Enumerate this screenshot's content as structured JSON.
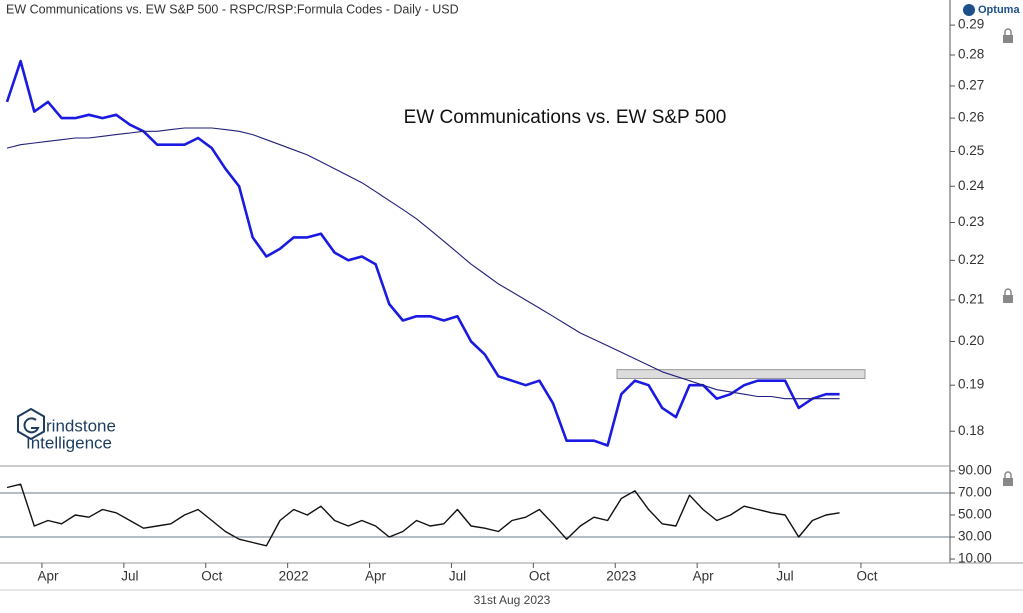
{
  "chart_data": [
    {
      "type": "line",
      "title": "EW Communications vs. EW S&P 500 - RSPC/RSP:Formula Codes - Daily - USD",
      "annotation": "EW Communications vs. EW S&P 500",
      "log_scale": true,
      "ylim": [
        0.173,
        0.2945
      ],
      "yticks": [
        0.18,
        0.19,
        {
          "value": 0.2,
          "label": "0.20"
        },
        0.21,
        0.22,
        0.23,
        0.24,
        0.25,
        0.26,
        0.27,
        0.28,
        0.29
      ],
      "band": [
        0.1915,
        0.1935
      ],
      "series": [
        {
          "color": "#1a1ae0",
          "width": 2.6,
          "values": [
            0.265,
            0.278,
            0.262,
            0.265,
            0.26,
            0.26,
            0.261,
            0.26,
            0.261,
            0.258,
            0.256,
            0.252,
            0.252,
            0.252,
            0.254,
            0.251,
            0.245,
            0.24,
            0.226,
            0.221,
            0.223,
            0.226,
            0.226,
            0.227,
            0.222,
            0.22,
            0.221,
            0.219,
            0.209,
            0.205,
            0.206,
            0.206,
            0.205,
            0.206,
            0.2,
            0.197,
            0.192,
            0.191,
            0.19,
            0.191,
            0.186,
            0.178,
            0.178,
            0.178,
            0.177,
            0.188,
            0.191,
            0.19,
            0.185,
            0.183,
            0.19,
            0.19,
            0.187,
            0.188,
            0.19,
            0.191,
            0.191,
            0.191,
            0.185,
            0.187,
            0.188,
            0.188,
            null,
            null,
            null,
            null,
            null,
            null,
            null
          ]
        },
        {
          "color": "#20207a",
          "width": 1.1,
          "values": [
            0.251,
            0.252,
            0.2525,
            0.253,
            0.2535,
            0.254,
            0.254,
            0.2545,
            0.255,
            0.2555,
            0.256,
            0.256,
            0.2565,
            0.257,
            0.257,
            0.257,
            0.2565,
            0.256,
            0.255,
            0.2535,
            0.252,
            0.2505,
            0.249,
            0.247,
            0.245,
            0.243,
            0.241,
            0.2385,
            0.236,
            0.2335,
            0.231,
            0.228,
            0.225,
            0.222,
            0.219,
            0.2165,
            0.214,
            0.212,
            0.21,
            0.208,
            0.206,
            0.204,
            0.202,
            0.2005,
            0.199,
            0.1975,
            0.196,
            0.1945,
            0.193,
            0.192,
            0.191,
            0.19,
            0.189,
            0.1885,
            0.188,
            0.1875,
            0.1875,
            0.187,
            0.187,
            0.187,
            0.187,
            0.187,
            null,
            null,
            null,
            null,
            null,
            null,
            null
          ]
        }
      ]
    },
    {
      "type": "line",
      "ylim": [
        6.4,
        93.6
      ],
      "yticks": [
        {
          "value": 10,
          "label": "10.00"
        },
        {
          "value": 30,
          "label": "30.00"
        },
        {
          "value": 50,
          "label": "50.00"
        },
        {
          "value": 70,
          "label": "70.00"
        },
        {
          "value": 90,
          "label": "90.00"
        }
      ],
      "reference_lines": [
        70,
        30
      ],
      "categories": [
        null,
        null,
        null,
        "Apr",
        null,
        null,
        null,
        null,
        null,
        "Jul",
        null,
        null,
        null,
        null,
        null,
        "Oct",
        null,
        null,
        null,
        null,
        null,
        "2022",
        null,
        null,
        null,
        null,
        null,
        "Apr",
        null,
        null,
        null,
        null,
        null,
        "Jul",
        null,
        null,
        null,
        null,
        null,
        "Oct",
        null,
        null,
        null,
        null,
        null,
        "2023",
        null,
        null,
        null,
        null,
        null,
        "Apr",
        null,
        null,
        null,
        null,
        null,
        "Jul",
        null,
        null,
        null,
        null,
        null,
        "Oct",
        null,
        null,
        null,
        null,
        null
      ],
      "date_label": "31st Aug 2023",
      "series": [
        {
          "color": "#111111",
          "width": 1.4,
          "values": [
            75,
            78,
            40,
            45,
            42,
            50,
            48,
            55,
            52,
            45,
            38,
            40,
            42,
            50,
            55,
            45,
            35,
            28,
            25,
            22,
            45,
            55,
            50,
            58,
            45,
            40,
            45,
            40,
            30,
            35,
            45,
            40,
            42,
            55,
            40,
            38,
            35,
            45,
            48,
            55,
            42,
            28,
            40,
            48,
            45,
            65,
            72,
            55,
            42,
            40,
            68,
            55,
            45,
            50,
            58,
            55,
            52,
            50,
            30,
            45,
            50,
            52,
            null,
            null,
            null,
            null,
            null,
            null,
            null
          ]
        }
      ]
    }
  ],
  "logo": "Optuma",
  "watermark": [
    "rindstone",
    "Intelligence"
  ]
}
